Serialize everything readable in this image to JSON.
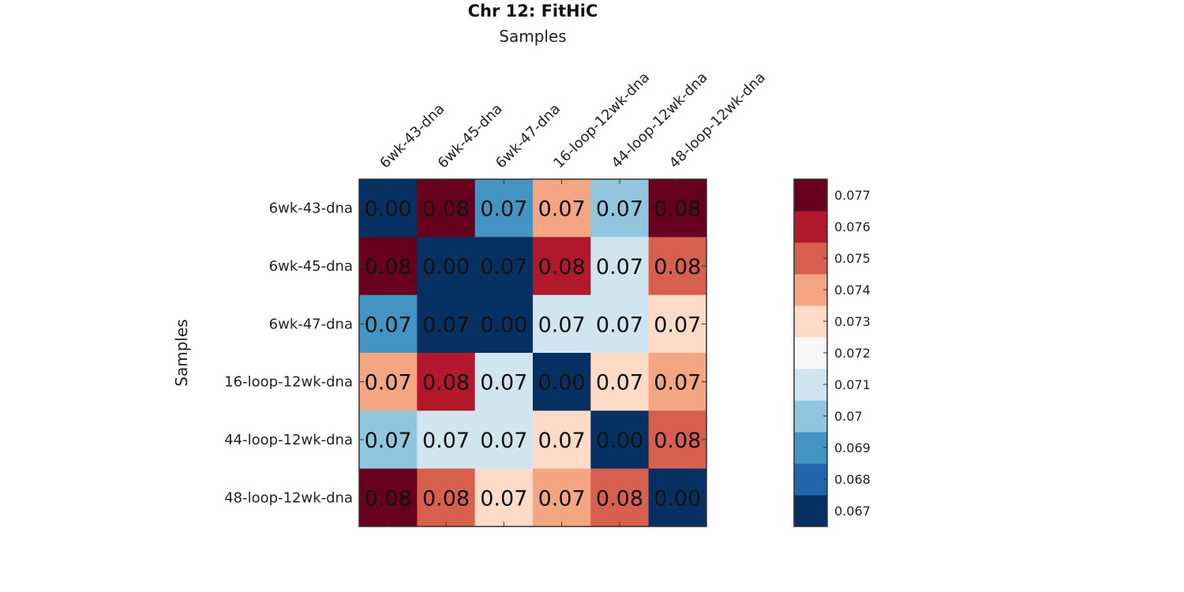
{
  "chart_data": {
    "type": "heatmap",
    "title": "Chr 12: FitHiC",
    "xlabel": "Samples",
    "ylabel": "Samples",
    "xlabel_position": "top",
    "categories_x": [
      "6wk-43-dna",
      "6wk-45-dna",
      "6wk-47-dna",
      "16-loop-12wk-dna",
      "44-loop-12wk-dna",
      "48-loop-12wk-dna"
    ],
    "categories_y": [
      "6wk-43-dna",
      "6wk-45-dna",
      "6wk-47-dna",
      "16-loop-12wk-dna",
      "44-loop-12wk-dna",
      "48-loop-12wk-dna"
    ],
    "values": [
      [
        0.0,
        0.0775,
        0.069,
        0.074,
        0.07,
        0.0775
      ],
      [
        0.0775,
        0.0,
        0.0665,
        0.076,
        0.071,
        0.075
      ],
      [
        0.069,
        0.0665,
        0.0,
        0.071,
        0.071,
        0.073
      ],
      [
        0.074,
        0.076,
        0.071,
        0.0,
        0.073,
        0.074
      ],
      [
        0.07,
        0.071,
        0.071,
        0.073,
        0.0,
        0.075
      ],
      [
        0.0775,
        0.075,
        0.073,
        0.074,
        0.075,
        0.0
      ]
    ],
    "cell_labels": [
      [
        "0.00",
        "0.08",
        "0.07",
        "0.07",
        "0.07",
        "0.08"
      ],
      [
        "0.08",
        "0.00",
        "0.07",
        "0.08",
        "0.07",
        "0.08"
      ],
      [
        "0.07",
        "0.07",
        "0.00",
        "0.07",
        "0.07",
        "0.07"
      ],
      [
        "0.07",
        "0.08",
        "0.07",
        "0.00",
        "0.07",
        "0.07"
      ],
      [
        "0.07",
        "0.07",
        "0.07",
        "0.07",
        "0.00",
        "0.08"
      ],
      [
        "0.08",
        "0.08",
        "0.07",
        "0.07",
        "0.08",
        "0.00"
      ]
    ],
    "colorbar": {
      "range": [
        0.0665,
        0.0775
      ],
      "ticks": [
        0.067,
        0.068,
        0.069,
        0.07,
        0.071,
        0.072,
        0.073,
        0.074,
        0.075,
        0.076,
        0.077
      ],
      "tick_labels": [
        "0.067",
        "0.068",
        "0.069",
        "0.07",
        "0.071",
        "0.072",
        "0.073",
        "0.074",
        "0.075",
        "0.076",
        "0.077"
      ],
      "colors": [
        "#053061",
        "#2166ac",
        "#4393c3",
        "#92c5de",
        "#d1e5f0",
        "#f7f7f7",
        "#fddbc7",
        "#f4a582",
        "#d6604d",
        "#b2182b",
        "#67001f"
      ],
      "placement": "right"
    },
    "grid": false
  }
}
